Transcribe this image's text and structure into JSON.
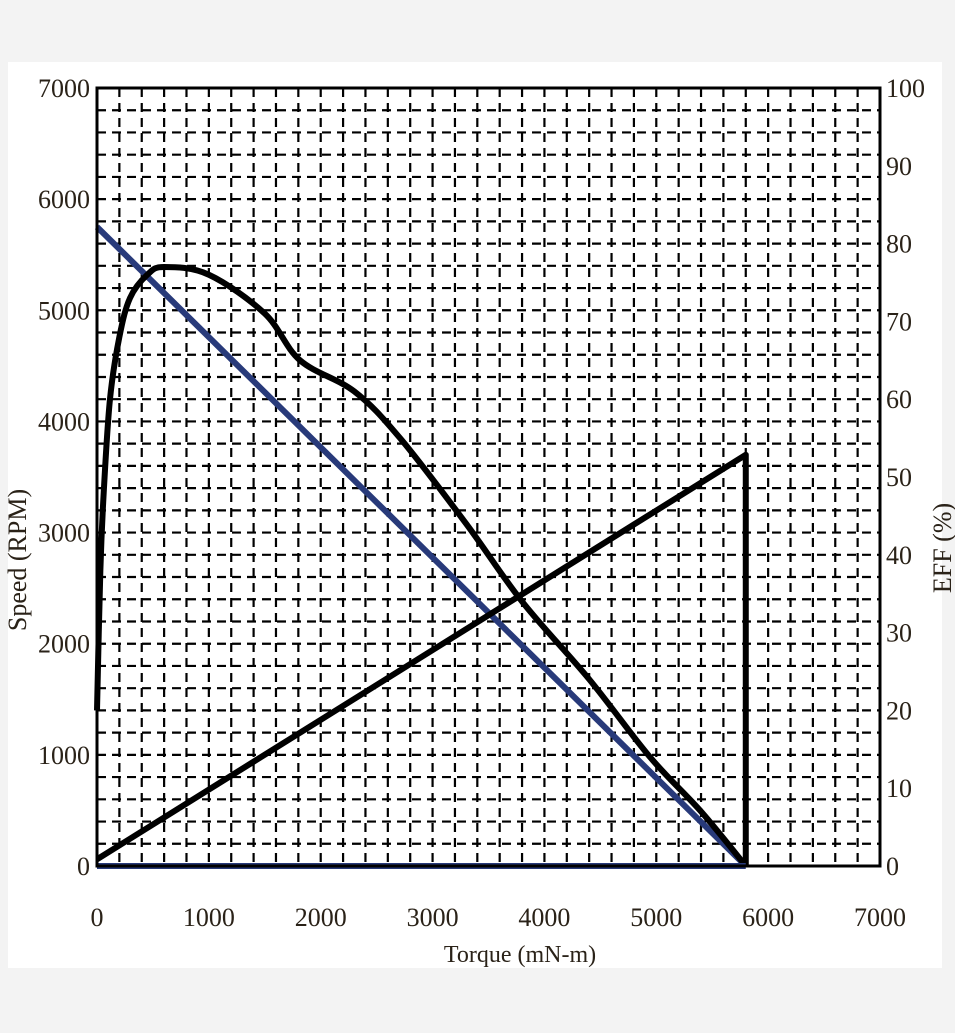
{
  "chart_data": {
    "type": "line",
    "xlabel": "Torque (mN-m)",
    "ylabel": "Speed (RPM)",
    "y2label": "EFF (%)",
    "xlim": [
      0,
      7000
    ],
    "ylim": [
      0,
      7000
    ],
    "y2lim": [
      0,
      100
    ],
    "xticks": [
      "0",
      "1000",
      "2000",
      "3000",
      "4000",
      "5000",
      "6000",
      "7000"
    ],
    "yticks": [
      "0",
      "1000",
      "2000",
      "3000",
      "4000",
      "5000",
      "6000",
      "7000"
    ],
    "y2ticks": [
      "0",
      "10",
      "20",
      "30",
      "40",
      "50",
      "60",
      "70",
      "80",
      "90",
      "100"
    ],
    "grid": true,
    "grid_step": 200,
    "colors": {
      "speed": "#283a7a",
      "curves": "#000000",
      "grid": "#000000"
    },
    "series": [
      {
        "axis": "left",
        "color": "#283a7a",
        "x": [
          0,
          5800
        ],
        "y": [
          5750,
          0
        ]
      },
      {
        "axis": "right",
        "color": "#000000",
        "x": [
          0,
          30,
          60,
          116,
          200,
          295,
          450,
          600,
          1000,
          1500,
          1815,
          2300,
          2709,
          3300,
          3800,
          4400,
          4944,
          5400,
          5800
        ],
        "y": [
          20,
          38,
          48,
          60,
          68,
          73,
          76,
          77,
          76,
          71,
          65,
          61,
          55,
          44,
          34,
          24,
          14,
          7,
          0
        ]
      },
      {
        "axis": "left",
        "color": "#000000",
        "x": [
          0,
          5800,
          5800
        ],
        "y": [
          60,
          3700,
          0
        ]
      },
      {
        "axis": "left",
        "color": "#283a7a",
        "x": [
          0,
          5800
        ],
        "y": [
          0,
          0
        ]
      }
    ]
  }
}
